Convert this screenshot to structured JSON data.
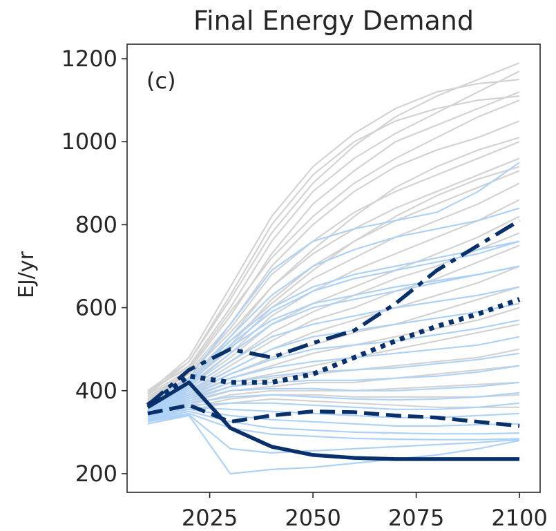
{
  "chart_data": {
    "type": "line",
    "title": "Final Energy Demand",
    "xlabel": "",
    "ylabel": "EJ/yr",
    "panel_label": "(c)",
    "xlim": [
      2005,
      2105
    ],
    "ylim": [
      155,
      1235
    ],
    "x_ticks": [
      2025,
      2050,
      2075,
      2100
    ],
    "y_ticks": [
      200,
      400,
      600,
      800,
      1000,
      1200
    ],
    "grid": false,
    "legend": "none",
    "background_ensembles": [
      {
        "color": "#d3d3d3",
        "x": [
          2010,
          2020,
          2030,
          2040,
          2050,
          2060,
          2070,
          2080,
          2090,
          2100
        ],
        "series": [
          [
            400,
            470,
            620,
            780,
            900,
            990,
            1060,
            1110,
            1150,
            1190
          ],
          [
            395,
            460,
            600,
            760,
            880,
            960,
            1020,
            1070,
            1120,
            1170
          ],
          [
            390,
            450,
            580,
            730,
            850,
            930,
            1000,
            1040,
            1080,
            1120
          ],
          [
            385,
            445,
            560,
            700,
            800,
            880,
            940,
            980,
            1010,
            1050
          ],
          [
            380,
            440,
            550,
            680,
            760,
            830,
            880,
            920,
            960,
            1000
          ],
          [
            378,
            430,
            530,
            650,
            730,
            790,
            840,
            880,
            920,
            960
          ],
          [
            375,
            425,
            510,
            620,
            700,
            760,
            810,
            850,
            890,
            930
          ],
          [
            372,
            420,
            500,
            600,
            670,
            720,
            770,
            810,
            850,
            900
          ],
          [
            370,
            415,
            490,
            580,
            640,
            690,
            730,
            770,
            810,
            860
          ],
          [
            368,
            410,
            480,
            560,
            610,
            650,
            690,
            730,
            770,
            820
          ],
          [
            365,
            405,
            470,
            540,
            590,
            630,
            670,
            700,
            740,
            780
          ],
          [
            362,
            400,
            460,
            520,
            570,
            600,
            640,
            670,
            710,
            750
          ],
          [
            360,
            395,
            450,
            500,
            540,
            570,
            600,
            630,
            660,
            700
          ],
          [
            358,
            390,
            440,
            480,
            510,
            540,
            560,
            590,
            620,
            650
          ],
          [
            355,
            385,
            430,
            460,
            490,
            510,
            530,
            550,
            570,
            600
          ],
          [
            352,
            380,
            420,
            440,
            460,
            480,
            500,
            520,
            540,
            560
          ],
          [
            350,
            375,
            410,
            430,
            440,
            450,
            460,
            470,
            480,
            500
          ],
          [
            348,
            370,
            400,
            410,
            420,
            420,
            430,
            440,
            450,
            460
          ],
          [
            345,
            365,
            390,
            400,
            400,
            400,
            405,
            410,
            415,
            420
          ],
          [
            342,
            360,
            380,
            390,
            390,
            385,
            385,
            385,
            385,
            390
          ],
          [
            340,
            355,
            370,
            380,
            375,
            370,
            365,
            360,
            360,
            360
          ],
          [
            395,
            480,
            650,
            820,
            940,
            1020,
            1080,
            1120,
            1140,
            1150
          ],
          [
            390,
            470,
            630,
            800,
            920,
            1000,
            1050,
            1080,
            1100,
            1110
          ],
          [
            400,
            455,
            590,
            720,
            820,
            900,
            960,
            1010,
            1060,
            1100
          ],
          [
            385,
            440,
            540,
            650,
            740,
            820,
            890,
            940,
            980,
            1010
          ],
          [
            380,
            432,
            520,
            610,
            690,
            760,
            820,
            870,
            910,
            940
          ]
        ]
      },
      {
        "color": "#aed2f7",
        "x": [
          2010,
          2020,
          2030,
          2040,
          2050,
          2060,
          2070,
          2080,
          2090,
          2100
        ],
        "series": [
          [
            370,
            430,
            560,
            690,
            760,
            790,
            810,
            830,
            880,
            950
          ],
          [
            365,
            420,
            530,
            630,
            700,
            740,
            770,
            790,
            810,
            840
          ],
          [
            362,
            415,
            510,
            590,
            640,
            670,
            690,
            710,
            730,
            760
          ],
          [
            360,
            410,
            490,
            560,
            600,
            620,
            640,
            660,
            680,
            700
          ],
          [
            358,
            405,
            470,
            530,
            560,
            580,
            600,
            615,
            630,
            650
          ],
          [
            355,
            400,
            450,
            500,
            530,
            545,
            560,
            575,
            590,
            610
          ],
          [
            352,
            395,
            440,
            475,
            500,
            510,
            520,
            535,
            550,
            570
          ],
          [
            350,
            390,
            430,
            455,
            470,
            480,
            490,
            500,
            510,
            530
          ],
          [
            348,
            385,
            420,
            435,
            445,
            450,
            455,
            465,
            475,
            490
          ],
          [
            345,
            380,
            410,
            420,
            425,
            425,
            430,
            435,
            445,
            460
          ],
          [
            343,
            375,
            400,
            405,
            405,
            400,
            400,
            405,
            410,
            420
          ],
          [
            340,
            370,
            385,
            390,
            385,
            380,
            378,
            380,
            385,
            395
          ],
          [
            338,
            365,
            370,
            370,
            365,
            360,
            355,
            355,
            360,
            370
          ],
          [
            335,
            360,
            355,
            350,
            345,
            340,
            335,
            335,
            340,
            345
          ],
          [
            332,
            355,
            340,
            330,
            325,
            320,
            315,
            315,
            318,
            320
          ],
          [
            330,
            350,
            325,
            310,
            305,
            300,
            298,
            296,
            296,
            298
          ],
          [
            328,
            345,
            310,
            295,
            290,
            285,
            283,
            282,
            282,
            284
          ],
          [
            320,
            340,
            200,
            210,
            215,
            225,
            235,
            245,
            260,
            280
          ],
          [
            325,
            342,
            260,
            250,
            255,
            260,
            265,
            270,
            275,
            282
          ],
          [
            360,
            425,
            520,
            600,
            650,
            680,
            700,
            720,
            740,
            760
          ],
          [
            355,
            420,
            505,
            570,
            610,
            630,
            650,
            665,
            680,
            700
          ]
        ]
      }
    ],
    "series": [
      {
        "style": "solid",
        "color": "#08306b",
        "x": [
          2010,
          2020,
          2030,
          2040,
          2050,
          2060,
          2070,
          2080,
          2090,
          2100
        ],
        "values": [
          360,
          420,
          310,
          265,
          245,
          238,
          235,
          235,
          235,
          235
        ]
      },
      {
        "style": "dashed",
        "color": "#08306b",
        "x": [
          2010,
          2020,
          2030,
          2040,
          2050,
          2060,
          2070,
          2080,
          2090,
          2100
        ],
        "values": [
          345,
          365,
          325,
          340,
          350,
          348,
          340,
          335,
          325,
          315
        ]
      },
      {
        "style": "dotted",
        "color": "#08306b",
        "x": [
          2010,
          2020,
          2030,
          2040,
          2050,
          2060,
          2070,
          2080,
          2090,
          2100
        ],
        "values": [
          365,
          435,
          420,
          420,
          440,
          480,
          520,
          555,
          585,
          620
        ]
      },
      {
        "style": "dashdot",
        "color": "#08306b",
        "x": [
          2010,
          2020,
          2030,
          2040,
          2050,
          2060,
          2070,
          2080,
          2090,
          2100
        ],
        "values": [
          365,
          450,
          500,
          480,
          515,
          545,
          610,
          690,
          750,
          810
        ]
      }
    ]
  }
}
